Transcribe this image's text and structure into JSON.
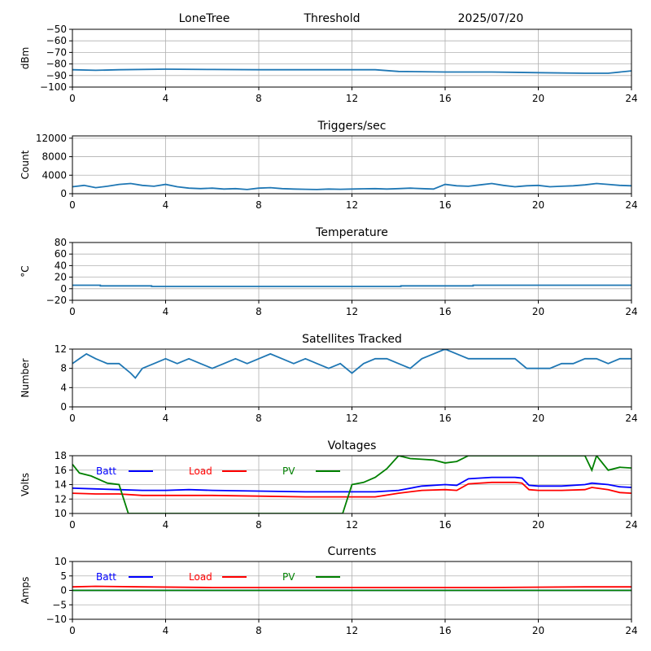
{
  "header": {
    "station": "LoneTree",
    "mode": "Threshold",
    "date": "2025/07/20"
  },
  "colors": {
    "series": "#1f77b4",
    "batt": "#0000ff",
    "load": "#ff0000",
    "pv": "#008000",
    "grid": "#b0b0b0",
    "axis": "#000000"
  },
  "chart_data": [
    {
      "id": "rssi",
      "type": "line",
      "title": "",
      "xlabel": "",
      "ylabel": "dBm",
      "xlim": [
        0,
        24
      ],
      "ylim": [
        -100,
        -50
      ],
      "xticks": [
        0,
        4,
        8,
        12,
        16,
        20,
        24
      ],
      "xtick_labels": [
        "0",
        "4",
        "8",
        "12",
        "16",
        "20",
        "24"
      ],
      "yticks": [
        -100,
        -90,
        -80,
        -70,
        -60,
        -50
      ],
      "ytick_labels": [
        "−100",
        "−90",
        "−80",
        "−70",
        "−60",
        "−50"
      ],
      "grid": true,
      "series": [
        {
          "color_key": "series",
          "x": [
            0,
            1,
            2,
            4,
            6,
            8,
            10,
            12,
            13,
            14,
            16,
            18,
            20,
            22,
            23,
            24
          ],
          "y": [
            -85,
            -85.5,
            -85,
            -84.5,
            -84.8,
            -85,
            -85,
            -85,
            -85,
            -86.5,
            -87,
            -87,
            -87.5,
            -88,
            -88,
            -86
          ]
        }
      ]
    },
    {
      "id": "triggers",
      "type": "line",
      "title": "Triggers/sec",
      "xlabel": "",
      "ylabel": "Count",
      "xlim": [
        0,
        24
      ],
      "ylim": [
        0,
        12500
      ],
      "xticks": [
        0,
        4,
        8,
        12,
        16,
        20,
        24
      ],
      "xtick_labels": [
        "0",
        "4",
        "8",
        "12",
        "16",
        "20",
        "24"
      ],
      "yticks": [
        0,
        4000,
        8000,
        12000
      ],
      "ytick_labels": [
        "0",
        "4000",
        "8000",
        "12000"
      ],
      "grid": true,
      "series": [
        {
          "color_key": "series",
          "x": [
            0,
            0.5,
            1,
            1.5,
            2,
            2.5,
            3,
            3.5,
            4,
            4.5,
            5,
            5.5,
            6,
            6.5,
            7,
            7.5,
            8,
            8.5,
            9,
            9.5,
            10,
            10.5,
            11,
            11.5,
            12,
            12.5,
            13,
            13.5,
            14,
            14.5,
            15,
            15.5,
            16,
            16.5,
            17,
            17.5,
            18,
            18.5,
            19,
            19.5,
            20,
            20.5,
            21,
            21.5,
            22,
            22.5,
            23,
            23.5,
            24
          ],
          "y": [
            1500,
            1800,
            1300,
            1600,
            2000,
            2200,
            1800,
            1600,
            2000,
            1500,
            1200,
            1100,
            1200,
            1000,
            1100,
            900,
            1200,
            1300,
            1100,
            1000,
            950,
            900,
            1000,
            950,
            1000,
            1050,
            1100,
            1000,
            1100,
            1200,
            1100,
            1000,
            2000,
            1700,
            1600,
            1900,
            2200,
            1800,
            1500,
            1700,
            1800,
            1500,
            1600,
            1700,
            1900,
            2200,
            2000,
            1800,
            1700
          ]
        }
      ]
    },
    {
      "id": "temperature",
      "type": "line",
      "title": "Temperature",
      "xlabel": "",
      "ylabel": "°C",
      "xlim": [
        0,
        24
      ],
      "ylim": [
        -20,
        80
      ],
      "xticks": [
        0,
        4,
        8,
        12,
        16,
        20,
        24
      ],
      "xtick_labels": [
        "0",
        "4",
        "8",
        "12",
        "16",
        "20",
        "24"
      ],
      "yticks": [
        -20,
        0,
        20,
        40,
        60,
        80
      ],
      "ytick_labels": [
        "−20",
        "0",
        "20",
        "40",
        "60",
        "80"
      ],
      "grid": true,
      "series": [
        {
          "color_key": "series",
          "x": [
            0,
            1.2,
            1.2,
            3.4,
            3.4,
            14.1,
            14.1,
            17.2,
            17.2,
            24
          ],
          "y": [
            6,
            6,
            5,
            5,
            4,
            4,
            5,
            5,
            6,
            6
          ]
        }
      ]
    },
    {
      "id": "satellites",
      "type": "line",
      "title": "Satellites Tracked",
      "xlabel": "",
      "ylabel": "Number",
      "xlim": [
        0,
        24
      ],
      "ylim": [
        0,
        12
      ],
      "xticks": [
        0,
        4,
        8,
        12,
        16,
        20,
        24
      ],
      "xtick_labels": [
        "0",
        "4",
        "8",
        "12",
        "16",
        "20",
        "24"
      ],
      "yticks": [
        0,
        4,
        8,
        12
      ],
      "ytick_labels": [
        "0",
        "4",
        "8",
        "12"
      ],
      "grid": true,
      "series": [
        {
          "color_key": "series",
          "x": [
            0,
            0.3,
            0.6,
            1,
            1.5,
            2,
            2.5,
            2.7,
            3,
            3.5,
            4,
            4.5,
            5,
            5.5,
            6,
            6.5,
            7,
            7.5,
            8,
            8.5,
            9,
            9.5,
            10,
            10.5,
            11,
            11.5,
            12,
            12.5,
            13,
            13.5,
            14,
            14.5,
            15,
            15.5,
            16,
            16.5,
            17,
            17.5,
            18,
            18.5,
            19,
            19.5,
            20,
            20.5,
            21,
            21.5,
            22,
            22.5,
            23,
            23.5,
            24
          ],
          "y": [
            9,
            10,
            11,
            10,
            9,
            9,
            7,
            6,
            8,
            9,
            10,
            9,
            10,
            9,
            8,
            9,
            10,
            9,
            10,
            11,
            10,
            9,
            10,
            9,
            8,
            9,
            7,
            9,
            10,
            10,
            9,
            8,
            10,
            11,
            12,
            11,
            10,
            10,
            10,
            10,
            10,
            8,
            8,
            8,
            9,
            9,
            10,
            10,
            9,
            10,
            10
          ]
        }
      ]
    },
    {
      "id": "voltages",
      "type": "line",
      "title": "Voltages",
      "xlabel": "",
      "ylabel": "Volts",
      "xlim": [
        0,
        24
      ],
      "ylim": [
        10,
        18
      ],
      "xticks": [
        0,
        4,
        8,
        12,
        16,
        20,
        24
      ],
      "xtick_labels": [
        "0",
        "4",
        "8",
        "12",
        "16",
        "20",
        "24"
      ],
      "yticks": [
        10,
        12,
        14,
        16,
        18
      ],
      "ytick_labels": [
        "10",
        "12",
        "14",
        "16",
        "18"
      ],
      "grid": true,
      "legend": "top-left",
      "series": [
        {
          "name": "Batt",
          "color_key": "batt",
          "x": [
            0,
            1,
            2,
            3,
            4,
            5,
            6,
            8,
            10,
            12,
            13,
            14,
            15,
            16,
            16.5,
            17,
            18,
            19,
            19.3,
            19.6,
            20,
            21,
            22,
            22.3,
            23,
            23.5,
            24
          ],
          "y": [
            13.5,
            13.4,
            13.3,
            13.2,
            13.2,
            13.3,
            13.2,
            13.1,
            13,
            13,
            13,
            13.2,
            13.8,
            14,
            13.9,
            14.8,
            15,
            15,
            14.9,
            13.9,
            13.8,
            13.8,
            14,
            14.2,
            14,
            13.7,
            13.6
          ]
        },
        {
          "name": "Load",
          "color_key": "load",
          "x": [
            0,
            1,
            2,
            3,
            4,
            5,
            6,
            8,
            10,
            12,
            13,
            14,
            15,
            16,
            16.5,
            17,
            18,
            19,
            19.3,
            19.6,
            20,
            21,
            22,
            22.3,
            23,
            23.5,
            24
          ],
          "y": [
            12.8,
            12.7,
            12.7,
            12.5,
            12.5,
            12.5,
            12.5,
            12.4,
            12.3,
            12.3,
            12.3,
            12.8,
            13.2,
            13.3,
            13.2,
            14.1,
            14.3,
            14.3,
            14.2,
            13.3,
            13.2,
            13.2,
            13.3,
            13.6,
            13.3,
            12.9,
            12.8
          ]
        },
        {
          "name": "PV",
          "color_key": "pv",
          "x": [
            0,
            0.3,
            0.8,
            1.5,
            2,
            2.2,
            2.4,
            11.6,
            12,
            12.5,
            13,
            13.5,
            14,
            14.5,
            15,
            15.5,
            16,
            16.5,
            17,
            22,
            22.3,
            22.5,
            23,
            23.5,
            24
          ],
          "y": [
            16.8,
            15.6,
            15.2,
            14.2,
            14,
            12,
            10,
            10,
            14,
            14.3,
            15,
            16.2,
            18,
            17.6,
            17.5,
            17.4,
            17,
            17.2,
            18,
            18,
            16,
            18,
            16,
            16.4,
            16.3
          ]
        }
      ]
    },
    {
      "id": "currents",
      "type": "line",
      "title": "Currents",
      "xlabel": "",
      "ylabel": "Amps",
      "xlim": [
        0,
        24
      ],
      "ylim": [
        -10,
        10
      ],
      "xticks": [
        0,
        4,
        8,
        12,
        16,
        20,
        24
      ],
      "xtick_labels": [
        "0",
        "4",
        "8",
        "12",
        "16",
        "20",
        "24"
      ],
      "yticks": [
        -10,
        -5,
        0,
        5,
        10
      ],
      "ytick_labels": [
        "−10",
        "−5",
        "0",
        "5",
        "10"
      ],
      "grid": true,
      "legend": "top-left",
      "series": [
        {
          "name": "Batt",
          "color_key": "batt",
          "x": [
            0,
            24
          ],
          "y": [
            0,
            0
          ]
        },
        {
          "name": "Load",
          "color_key": "load",
          "x": [
            0,
            1,
            3,
            6,
            12,
            18,
            22,
            24
          ],
          "y": [
            1.2,
            1.4,
            1.2,
            1.0,
            1.0,
            1.0,
            1.2,
            1.2
          ]
        },
        {
          "name": "PV",
          "color_key": "pv",
          "x": [
            0,
            24
          ],
          "y": [
            0,
            0
          ]
        }
      ]
    }
  ]
}
